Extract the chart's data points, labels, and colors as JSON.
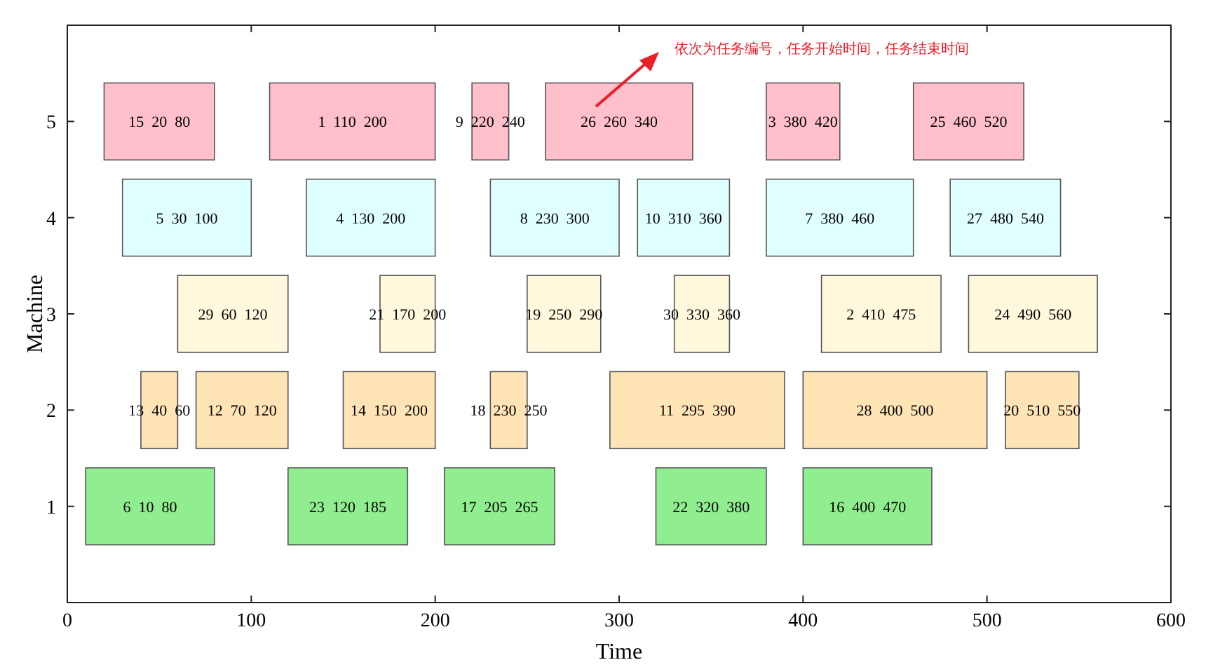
{
  "chart_data": {
    "type": "bar",
    "orientation": "horizontal",
    "xlabel": "Time",
    "ylabel": "Machine",
    "categories": [
      "5",
      "4",
      "3",
      "2",
      "1"
    ],
    "xlim": [
      0,
      600
    ],
    "xticks": [
      0,
      100,
      200,
      300,
      400,
      500,
      600
    ],
    "grid": false,
    "annotations": [
      "依次为任务编号，任务开始时间，任务结束时间",
      {
        "text": "15  20  80",
        "x": 50,
        "y": "5"
      },
      {
        "text": "1  110  200",
        "x": 155,
        "y": "5"
      },
      {
        "text": "9  220  240",
        "x": 230,
        "y": "5"
      },
      {
        "text": "26  260  340",
        "x": 300,
        "y": "5"
      },
      {
        "text": "3  380  420",
        "x": 400,
        "y": "5"
      },
      {
        "text": "25  460  520",
        "x": 490,
        "y": "5"
      },
      {
        "text": "5  30  100",
        "x": 65,
        "y": "4"
      },
      {
        "text": "4  130  200",
        "x": 165,
        "y": "4"
      },
      {
        "text": "8  230  300",
        "x": 265,
        "y": "4"
      },
      {
        "text": "10  310  360",
        "x": 335,
        "y": "4"
      },
      {
        "text": "7  380  460",
        "x": 420,
        "y": "4"
      },
      {
        "text": "27  480  540",
        "x": 510,
        "y": "4"
      },
      {
        "text": "29  60  120",
        "x": 90,
        "y": "3"
      },
      {
        "text": "21  170  200",
        "x": 185,
        "y": "3"
      },
      {
        "text": "19  250  290",
        "x": 270,
        "y": "3"
      },
      {
        "text": "30  330  360",
        "x": 345,
        "y": "3"
      },
      {
        "text": "2  410  475",
        "x": 442.5,
        "y": "3"
      },
      {
        "text": "24  490  560",
        "x": 525,
        "y": "3"
      },
      {
        "text": "13  40  60",
        "x": 50,
        "y": "2"
      },
      {
        "text": "12  70  120",
        "x": 95,
        "y": "2"
      },
      {
        "text": "14  150  200",
        "x": 175,
        "y": "2"
      },
      {
        "text": "18  230  250",
        "x": 240,
        "y": "2"
      },
      {
        "text": "11  295  390",
        "x": 342.5,
        "y": "2"
      },
      {
        "text": "28  400  500",
        "x": 450,
        "y": "2"
      },
      {
        "text": "20  510  550",
        "x": 530,
        "y": "2"
      },
      {
        "text": "6  10  80",
        "x": 45,
        "y": "1"
      },
      {
        "text": "23  120  185",
        "x": 152.5,
        "y": "1"
      },
      {
        "text": "17  205  265",
        "x": 235,
        "y": "1"
      },
      {
        "text": "22  320  380",
        "x": 350,
        "y": "1"
      },
      {
        "text": "16  400  470",
        "x": 435,
        "y": "1"
      }
    ],
    "series": [
      {
        "base": [
          20,
          30,
          60,
          40,
          10
        ],
        "values": [
          60,
          70,
          60,
          20,
          70
        ],
        "colors": [
          "#ffc0cb",
          "#e0ffff",
          "#fff8dc",
          "#ffe4b5",
          "#90ee90"
        ]
      },
      {
        "base": [
          110,
          130,
          170,
          70,
          120
        ],
        "values": [
          90,
          70,
          30,
          50,
          65
        ],
        "colors": [
          "#ffc0cb",
          "#e0ffff",
          "#fff8dc",
          "#ffe4b5",
          "#90ee90"
        ]
      },
      {
        "base": [
          220,
          230,
          250,
          150,
          205
        ],
        "values": [
          20,
          70,
          40,
          50,
          60
        ],
        "colors": [
          "#ffc0cb",
          "#e0ffff",
          "#fff8dc",
          "#ffe4b5",
          "#90ee90"
        ]
      },
      {
        "base": [
          260,
          310,
          330,
          230,
          320
        ],
        "values": [
          80,
          50,
          30,
          20,
          60
        ],
        "colors": [
          "#ffc0cb",
          "#e0ffff",
          "#fff8dc",
          "#ffe4b5",
          "#90ee90"
        ]
      },
      {
        "base": [
          380,
          380,
          410,
          295,
          400
        ],
        "values": [
          40,
          80,
          65,
          95,
          70
        ],
        "colors": [
          "#ffc0cb",
          "#e0ffff",
          "#fff8dc",
          "#ffe4b5",
          "#90ee90"
        ]
      },
      {
        "base": [
          460,
          480,
          490,
          400,
          null
        ],
        "values": [
          60,
          60,
          70,
          100,
          null
        ],
        "colors": [
          "#ffc0cb",
          "#e0ffff",
          "#fff8dc",
          "#ffe4b5",
          null
        ]
      },
      {
        "base": [
          null,
          null,
          null,
          510,
          null
        ],
        "values": [
          null,
          null,
          null,
          40,
          null
        ],
        "colors": [
          null,
          null,
          null,
          "#ffe4b5",
          null
        ]
      }
    ]
  }
}
